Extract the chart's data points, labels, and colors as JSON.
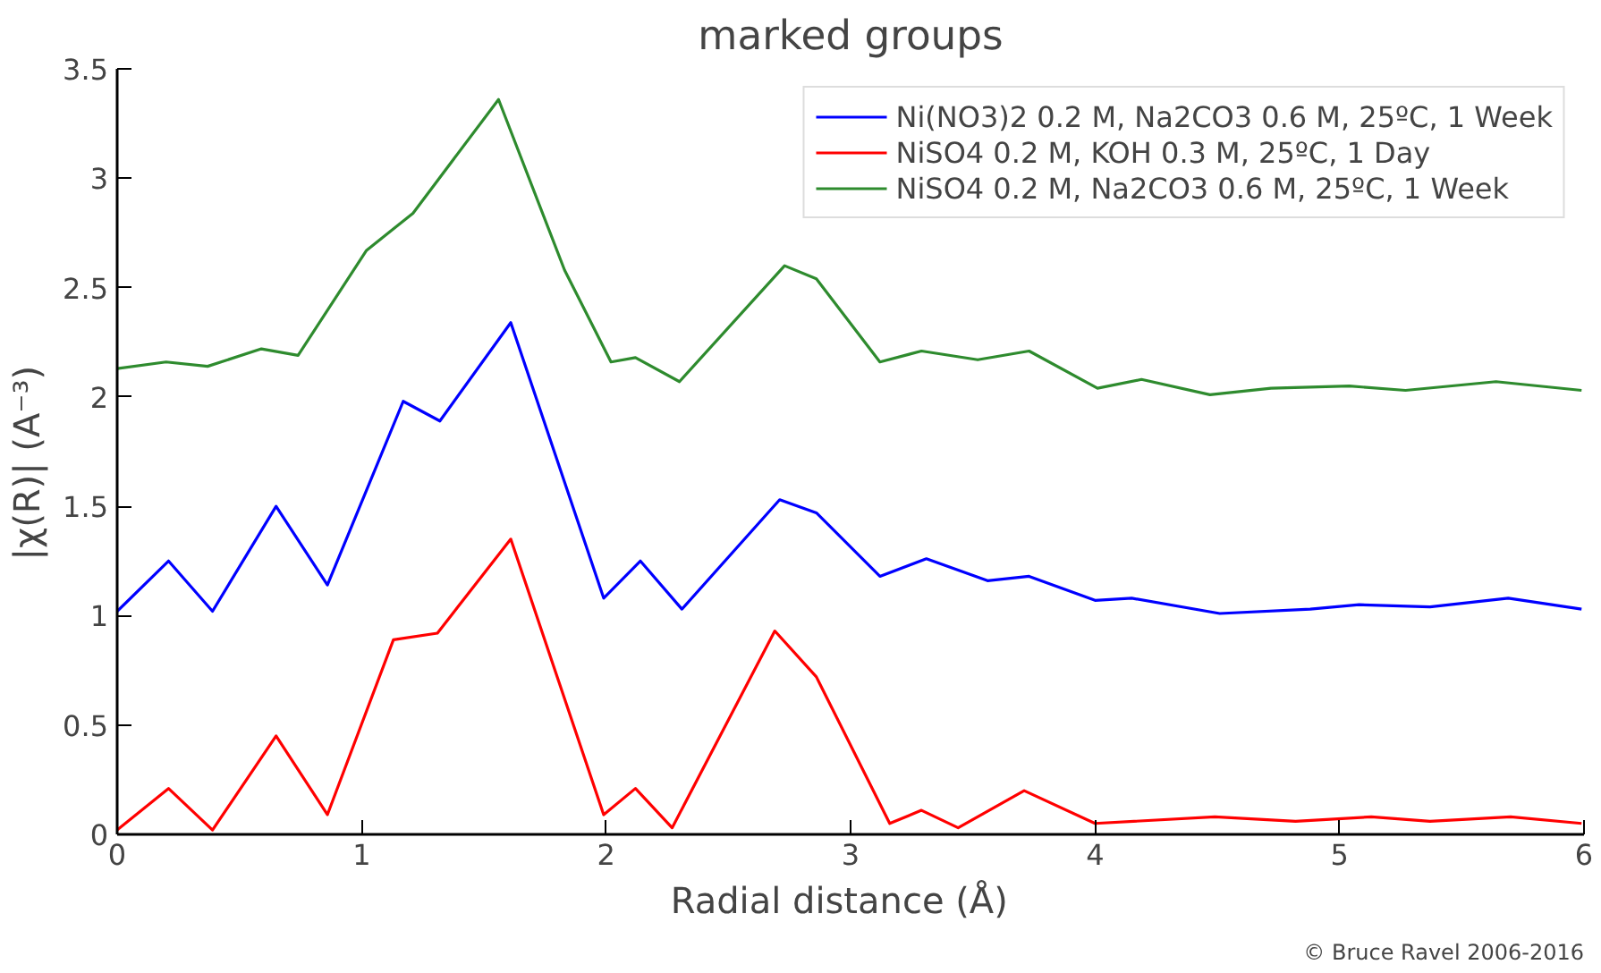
{
  "chart_data": {
    "type": "line",
    "title": "marked groups",
    "xlabel": "Radial distance   (Å)",
    "ylabel": "|χ(R)|   (A⁻³)",
    "xlim": [
      0,
      6
    ],
    "ylim": [
      0,
      3.5
    ],
    "xticks": [
      0,
      1,
      2,
      3,
      4,
      5,
      6
    ],
    "yticks": [
      0,
      0.5,
      1,
      1.5,
      2,
      2.5,
      3,
      3.5
    ],
    "grid": false,
    "legend": "top right",
    "line_style": "solid",
    "marker": "none",
    "annotations": [
      "© Bruce Ravel 2006-2016"
    ],
    "series": [
      {
        "name": "Ni(NO3)2 0.2 M, Na2CO3 0.6 M, 25ºC, 1 Week",
        "color": "#0000ff",
        "x": [
          0,
          0.21,
          0.39,
          0.65,
          0.86,
          1.17,
          1.32,
          1.61,
          1.99,
          2.14,
          2.31,
          2.71,
          2.86,
          3.12,
          3.31,
          3.56,
          3.73,
          4.0,
          4.15,
          4.51,
          4.88,
          5.08,
          5.37,
          5.69,
          5.99
        ],
        "values": [
          1.02,
          1.25,
          1.02,
          1.5,
          1.14,
          1.98,
          1.89,
          2.34,
          1.08,
          1.25,
          1.03,
          1.53,
          1.47,
          1.18,
          1.26,
          1.16,
          1.18,
          1.07,
          1.08,
          1.01,
          1.03,
          1.05,
          1.04,
          1.08,
          1.03
        ]
      },
      {
        "name": "NiSO4 0.2 M, KOH 0.3 M, 25ºC, 1 Day",
        "color": "#ff0000",
        "x": [
          0,
          0.21,
          0.39,
          0.65,
          0.86,
          1.13,
          1.31,
          1.61,
          1.99,
          2.12,
          2.27,
          2.69,
          2.86,
          3.16,
          3.29,
          3.44,
          3.71,
          4.0,
          4.49,
          4.82,
          5.13,
          5.37,
          5.7,
          5.99
        ],
        "values": [
          0.02,
          0.21,
          0.02,
          0.45,
          0.09,
          0.89,
          0.92,
          1.35,
          0.09,
          0.21,
          0.03,
          0.93,
          0.72,
          0.05,
          0.11,
          0.03,
          0.2,
          0.05,
          0.08,
          0.06,
          0.08,
          0.06,
          0.08,
          0.05
        ]
      },
      {
        "name": "NiSO4 0.2 M, Na2CO3 0.6 M, 25ºC, 1 Week",
        "color": "#2e8b2e",
        "x": [
          0,
          0.2,
          0.37,
          0.59,
          0.74,
          1.02,
          1.21,
          1.56,
          1.83,
          2.02,
          2.12,
          2.3,
          2.73,
          2.86,
          3.12,
          3.29,
          3.52,
          3.73,
          4.01,
          4.19,
          4.47,
          4.72,
          5.04,
          5.27,
          5.64,
          5.99
        ],
        "values": [
          2.13,
          2.16,
          2.14,
          2.22,
          2.19,
          2.67,
          2.84,
          3.36,
          2.58,
          2.16,
          2.18,
          2.07,
          2.6,
          2.54,
          2.16,
          2.21,
          2.17,
          2.21,
          2.04,
          2.08,
          2.01,
          2.04,
          2.05,
          2.03,
          2.07,
          2.03
        ]
      }
    ]
  }
}
